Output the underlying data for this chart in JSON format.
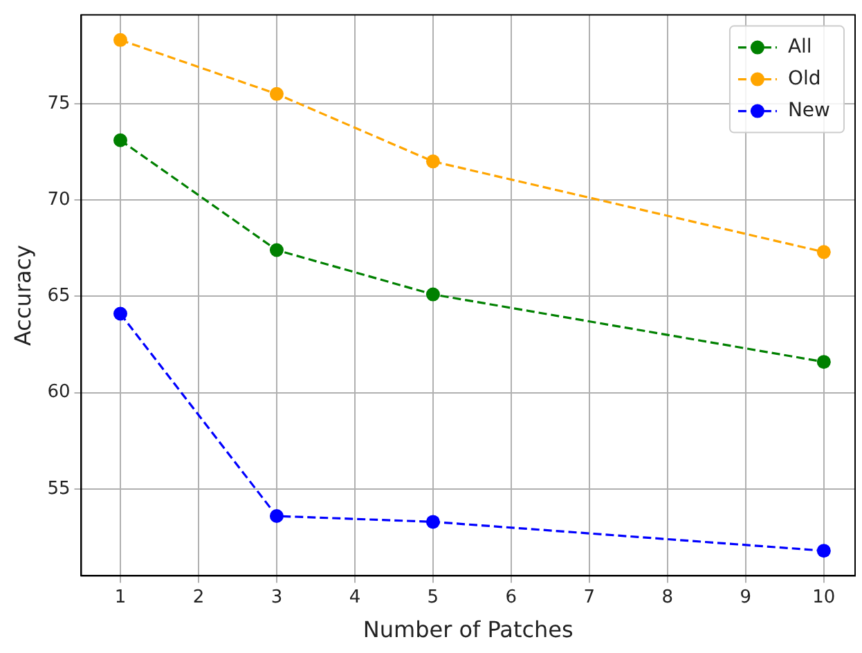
{
  "chart_data": {
    "type": "line",
    "xlabel": "Number of Patches",
    "ylabel": "Accuracy",
    "x": [
      1,
      3,
      5,
      10
    ],
    "series": [
      {
        "name": "All",
        "color": "#008000",
        "values": [
          73.1,
          67.4,
          65.1,
          61.6
        ]
      },
      {
        "name": "Old",
        "color": "#ffa500",
        "values": [
          78.3,
          75.5,
          72.0,
          67.3
        ]
      },
      {
        "name": "New",
        "color": "#0000ff",
        "values": [
          64.1,
          53.6,
          53.3,
          51.8
        ]
      }
    ],
    "xlim": [
      0.5,
      10.4
    ],
    "xticks": [
      1,
      2,
      3,
      4,
      5,
      6,
      7,
      8,
      9,
      10
    ],
    "ylim": [
      50.5,
      79.6
    ],
    "yticks": [
      55,
      60,
      65,
      70,
      75
    ],
    "grid": true,
    "legend": "top right",
    "marker": "circle",
    "line_style": "dashed"
  }
}
